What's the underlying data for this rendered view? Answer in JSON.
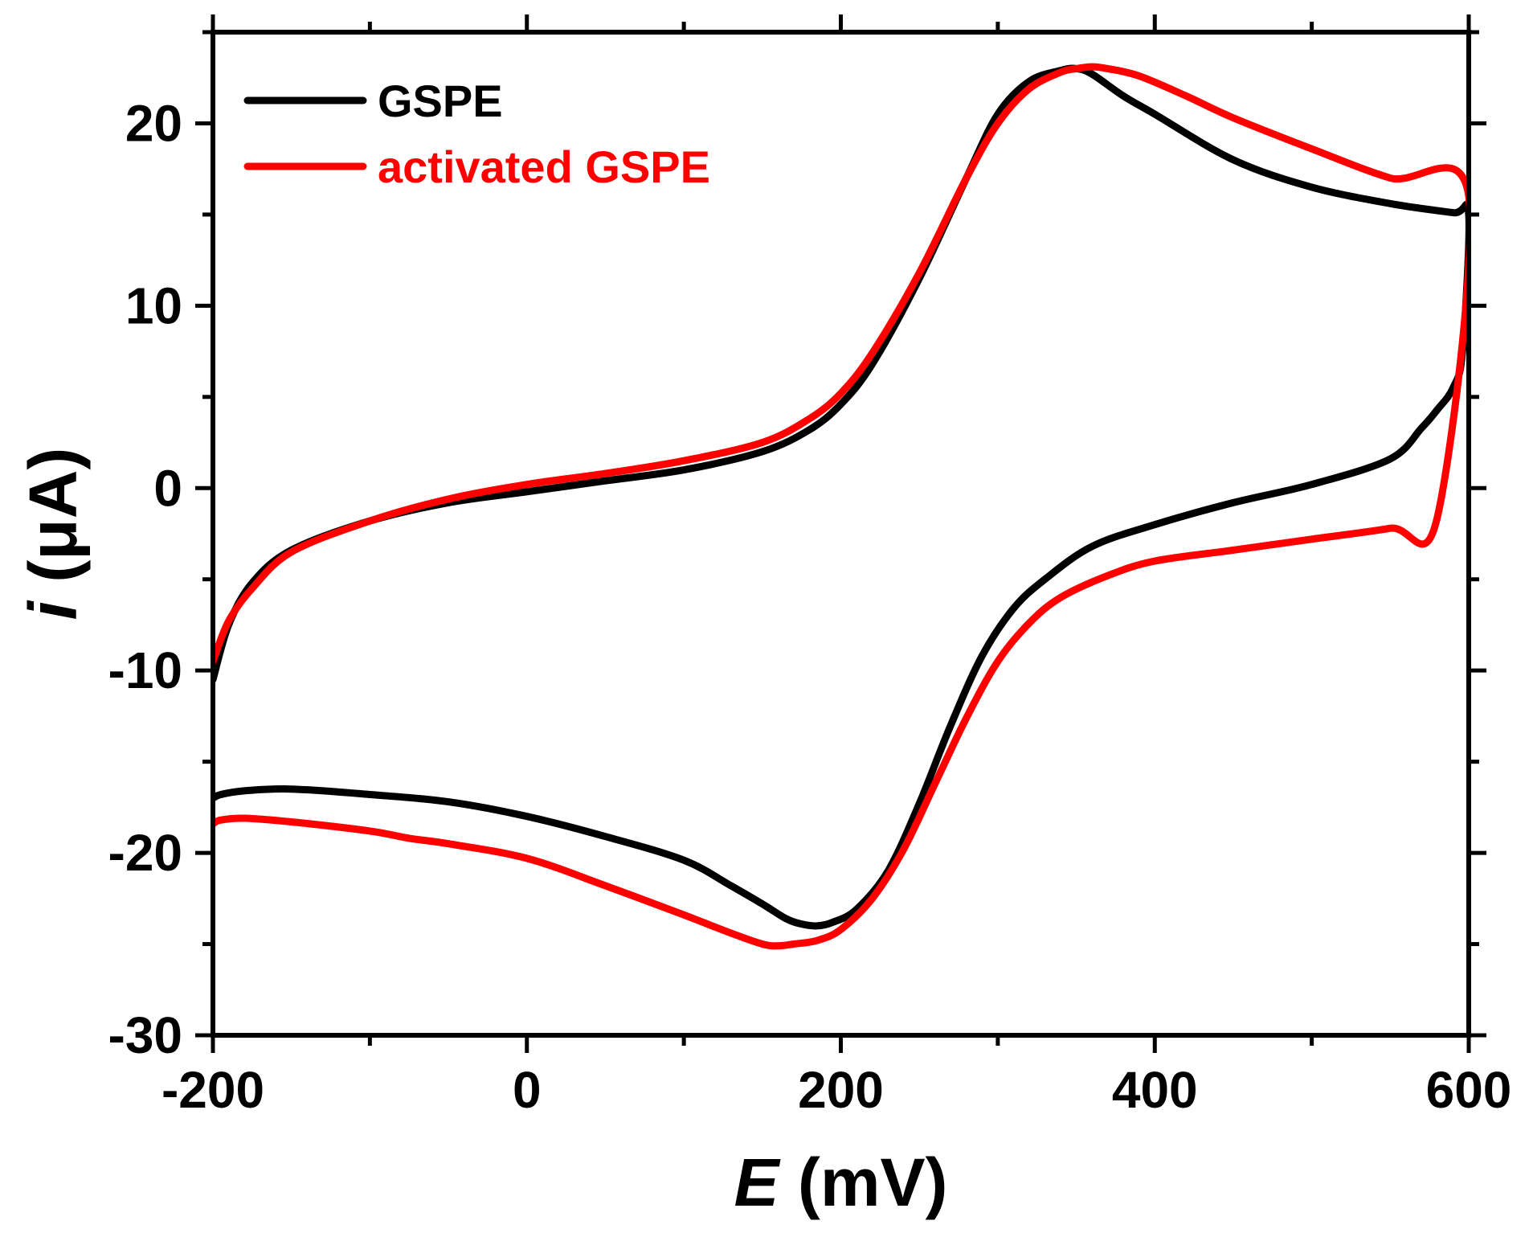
{
  "chart_data": {
    "type": "line",
    "title": "",
    "xlabel": {
      "symbol": "E",
      "unit": "(mV)"
    },
    "ylabel": {
      "symbol": "i",
      "unit": "(μA)"
    },
    "xlim": [
      -200,
      600
    ],
    "ylim": [
      -30,
      25
    ],
    "xticks": [
      -200,
      0,
      200,
      400,
      600
    ],
    "xtick_labels": [
      "-200",
      "0",
      "200",
      "400",
      "600"
    ],
    "yticks": [
      -30,
      -20,
      -10,
      0,
      10,
      20
    ],
    "ytick_labels": [
      "-30",
      "-20",
      "-10",
      "0",
      "10",
      "20"
    ],
    "x_minor_step": 100,
    "y_minor_step": 5,
    "grid": false,
    "legend_position": "top-left",
    "series": [
      {
        "name": "GSPE",
        "color": "#000000",
        "x": [
          -200,
          -190,
          -175,
          -150,
          -100,
          -50,
          0,
          50,
          100,
          150,
          180,
          200,
          220,
          250,
          280,
          300,
          320,
          340,
          350,
          360,
          380,
          400,
          450,
          500,
          550,
          590,
          600,
          596,
          590,
          580,
          570,
          550,
          500,
          450,
          400,
          360,
          330,
          310,
          290,
          270,
          250,
          230,
          210,
          195,
          185,
          175,
          165,
          150,
          130,
          100,
          50,
          0,
          -50,
          -100,
          -150,
          -180,
          -195,
          -200
        ],
        "y": [
          -10.5,
          -7.5,
          -5.2,
          -3.4,
          -1.8,
          -0.8,
          -0.2,
          0.4,
          1.0,
          2.0,
          3.2,
          4.6,
          6.8,
          11.5,
          17.0,
          20.5,
          22.3,
          22.9,
          23.0,
          22.7,
          21.5,
          20.5,
          18.0,
          16.5,
          15.6,
          15.1,
          15.0,
          7.5,
          5.5,
          4.3,
          3.3,
          1.6,
          0.2,
          -0.8,
          -2.0,
          -3.2,
          -5.0,
          -6.6,
          -9.2,
          -13.0,
          -17.3,
          -21.0,
          -23.1,
          -23.8,
          -24.0,
          -23.9,
          -23.6,
          -22.8,
          -21.8,
          -20.4,
          -19.1,
          -18.0,
          -17.2,
          -16.8,
          -16.5,
          -16.6,
          -16.8,
          -17.0
        ]
      },
      {
        "name": "activated GSPE",
        "color": "#ff0000",
        "x": [
          -200,
          -190,
          -175,
          -150,
          -100,
          -50,
          0,
          50,
          100,
          150,
          180,
          200,
          220,
          250,
          280,
          300,
          320,
          340,
          350,
          360,
          370,
          390,
          420,
          450,
          500,
          550,
          600,
          580,
          550,
          500,
          450,
          400,
          370,
          340,
          320,
          300,
          280,
          260,
          240,
          220,
          200,
          185,
          170,
          160,
          150,
          130,
          100,
          50,
          0,
          -50,
          -75,
          -100,
          -150,
          -180,
          -195,
          -200
        ],
        "y": [
          -9.5,
          -7.3,
          -5.5,
          -3.5,
          -1.8,
          -0.6,
          0.2,
          0.8,
          1.5,
          2.5,
          3.8,
          5.2,
          7.4,
          11.8,
          17.0,
          20.0,
          21.9,
          22.8,
          23.0,
          23.1,
          23.0,
          22.6,
          21.5,
          20.3,
          18.6,
          17.0,
          16.0,
          -1.6,
          -2.2,
          -2.8,
          -3.4,
          -4.0,
          -4.8,
          -6.0,
          -7.4,
          -9.5,
          -12.6,
          -16.2,
          -19.8,
          -22.5,
          -24.2,
          -24.8,
          -25.0,
          -25.1,
          -25.0,
          -24.4,
          -23.4,
          -21.8,
          -20.3,
          -19.5,
          -19.2,
          -18.8,
          -18.3,
          -18.1,
          -18.2,
          -18.4
        ]
      }
    ]
  }
}
